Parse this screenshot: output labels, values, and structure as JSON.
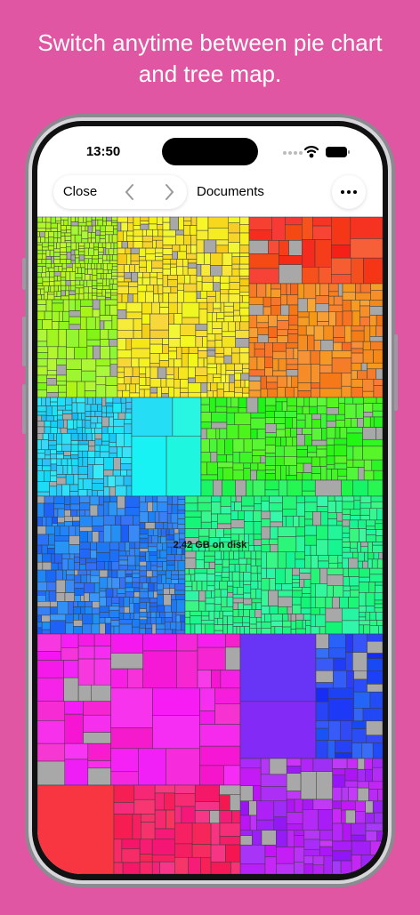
{
  "headline": {
    "line1": "Switch anytime between pie chart",
    "line2": "and tree map."
  },
  "status_bar": {
    "time": "13:50"
  },
  "nav": {
    "close": "Close",
    "title": "Documents"
  },
  "treemap": {
    "label": "2.42 GB on disk"
  }
}
